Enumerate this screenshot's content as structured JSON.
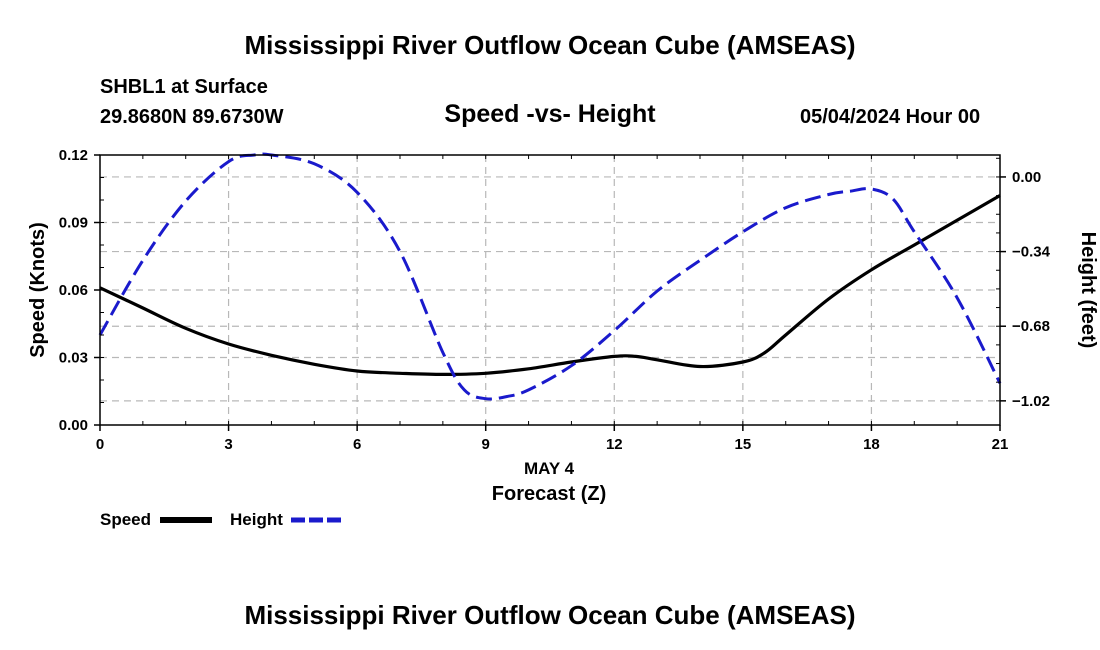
{
  "title": "Mississippi River Outflow Ocean Cube (AMSEAS)",
  "footer_title": "Mississippi River Outflow Ocean Cube (AMSEAS)",
  "station": "SHBL1 at Surface",
  "coords": "29.8680N  89.6730W",
  "date": "05/04/2024 Hour 00",
  "chart_data": {
    "type": "line",
    "title": "Speed -vs- Height",
    "xlabel_date": "MAY 4",
    "xlabel": "Forecast (Z)",
    "ylabel": "Speed (Knots)",
    "y2label": "Height (feet)",
    "xlim": [
      0,
      21
    ],
    "ylim": [
      0,
      0.12
    ],
    "y2lim": [
      -1.13,
      0.1
    ],
    "x_ticks": [
      "0",
      "3",
      "6",
      "9",
      "12",
      "15",
      "18",
      "21"
    ],
    "y_ticks": [
      "0.00",
      "0.03",
      "0.06",
      "0.09",
      "0.12"
    ],
    "y2_ticks": [
      "0.00",
      "−0.34",
      "−0.68",
      "−1.02"
    ],
    "y2_tick_values": [
      0.0,
      -0.34,
      -0.68,
      -1.02
    ],
    "grid": true,
    "series": [
      {
        "name": "Speed",
        "axis": "left",
        "color": "#000000",
        "style": "solid",
        "x": [
          0,
          1,
          2,
          3,
          4,
          5,
          6,
          7,
          8,
          9,
          10,
          11,
          12,
          12.5,
          13,
          14,
          15,
          15.5,
          16,
          17,
          18,
          19,
          20,
          21
        ],
        "values": [
          0.061,
          0.052,
          0.043,
          0.036,
          0.031,
          0.027,
          0.024,
          0.023,
          0.0225,
          0.023,
          0.025,
          0.028,
          0.0305,
          0.0305,
          0.029,
          0.026,
          0.028,
          0.032,
          0.04,
          0.056,
          0.069,
          0.08,
          0.091,
          0.102
        ]
      },
      {
        "name": "Height",
        "axis": "right",
        "color": "#1a1acc",
        "style": "dashed",
        "x": [
          0,
          1,
          2,
          3,
          3.6,
          4,
          5,
          6,
          7,
          8,
          8.5,
          9,
          9.5,
          10,
          11,
          12,
          13,
          14,
          15,
          16,
          17,
          17.5,
          18,
          18.5,
          19,
          20,
          21
        ],
        "values": [
          -0.72,
          -0.38,
          -0.11,
          0.07,
          0.12,
          0.1,
          0.06,
          -0.07,
          -0.34,
          -0.8,
          -0.97,
          -1.01,
          -1.0,
          -0.97,
          -0.86,
          -0.7,
          -0.52,
          -0.38,
          -0.25,
          -0.14,
          -0.08,
          -0.065,
          -0.055,
          -0.1,
          -0.25,
          -0.55,
          -0.94
        ]
      }
    ],
    "legend": [
      {
        "label": "Speed",
        "color": "#000000",
        "style": "solid"
      },
      {
        "label": "Height",
        "color": "#1a1acc",
        "style": "dashed"
      }
    ]
  }
}
